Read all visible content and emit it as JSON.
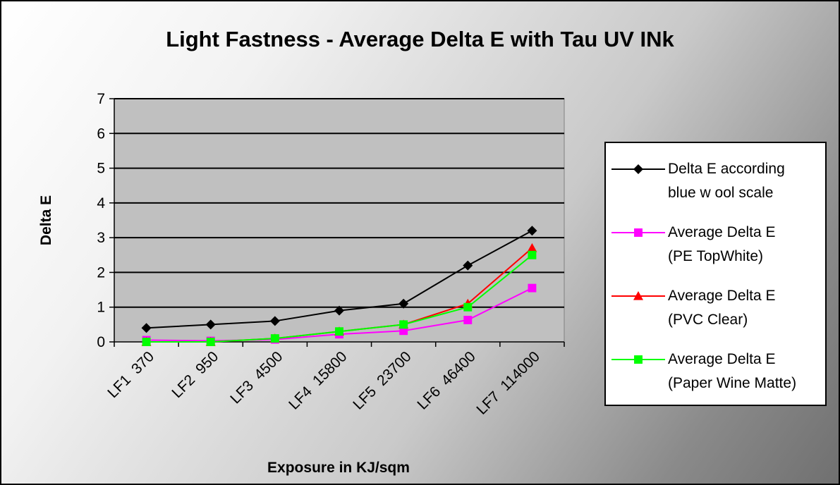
{
  "chart_data": {
    "type": "line",
    "title": "Light Fastness - Average Delta E with Tau UV INk",
    "xlabel": "Exposure in KJ/sqm",
    "ylabel": "Delta E",
    "categories": [
      "LF1  370",
      "LF2  950",
      "LF3  4500",
      "LF4  15800",
      "LF5  23700",
      "LF6  46400",
      "LF7  114000"
    ],
    "ylim": [
      0,
      7
    ],
    "yticks": [
      0,
      1,
      2,
      3,
      4,
      5,
      6,
      7
    ],
    "grid": "horizontal",
    "legend_position": "right",
    "plot_background": "#c0c0c0",
    "series": [
      {
        "name": "Delta E according blue w ool scale",
        "legend_lines": [
          "Delta E according",
          "blue w ool scale"
        ],
        "color": "#000000",
        "marker": "diamond",
        "values": [
          0.4,
          0.5,
          0.6,
          0.9,
          1.1,
          2.2,
          3.2
        ]
      },
      {
        "name": "Average  Delta E (PE TopWhite)",
        "legend_lines": [
          "Average  Delta E",
          "(PE TopWhite)"
        ],
        "color": "#ff00ff",
        "marker": "square",
        "values": [
          0.05,
          0.03,
          0.07,
          0.22,
          0.32,
          0.63,
          1.55
        ]
      },
      {
        "name": "Average Delta E (PVC Clear)",
        "legend_lines": [
          "Average Delta E",
          "(PVC Clear)"
        ],
        "color": "#ff0000",
        "marker": "triangle",
        "values": [
          0.0,
          0.0,
          0.1,
          0.3,
          0.5,
          1.1,
          2.7
        ]
      },
      {
        "name": "Average  Delta E (Paper Wine Matte)",
        "legend_lines": [
          "Average  Delta E",
          "(Paper Wine Matte)"
        ],
        "color": "#00ff00",
        "marker": "square",
        "values": [
          0.0,
          0.0,
          0.1,
          0.3,
          0.5,
          1.0,
          2.5
        ]
      }
    ]
  }
}
